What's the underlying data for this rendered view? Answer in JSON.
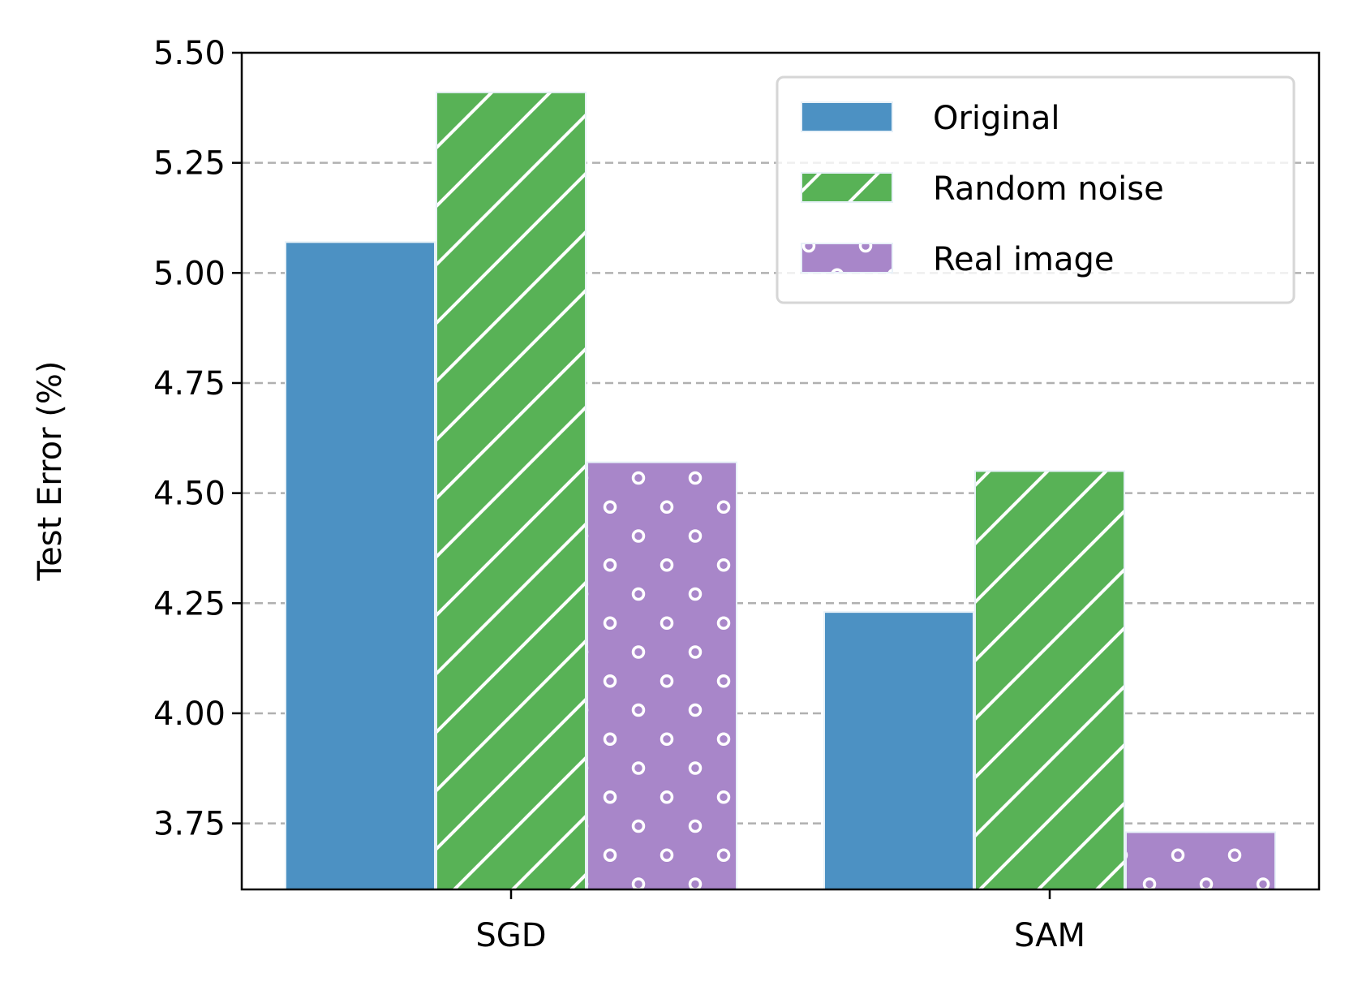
{
  "chart_data": {
    "type": "bar",
    "title": "",
    "xlabel": "",
    "ylabel": "Test Error (%)",
    "ylim": [
      3.6,
      5.5
    ],
    "yticks": [
      "3.75",
      "4.00",
      "4.25",
      "4.50",
      "4.75",
      "5.00",
      "5.25",
      "5.50"
    ],
    "grid": "y-dashed",
    "categories": [
      "SGD",
      "SAM"
    ],
    "series": [
      {
        "name": "Original",
        "values": [
          5.07,
          4.23
        ],
        "color": "#4c91c3",
        "pattern": "solid"
      },
      {
        "name": "Random noise",
        "values": [
          5.41,
          4.55
        ],
        "color": "#58b256",
        "pattern": "diagonal"
      },
      {
        "name": "Real image",
        "values": [
          4.57,
          3.73
        ],
        "color": "#a886c9",
        "pattern": "circles"
      }
    ],
    "legend": "top-right"
  }
}
